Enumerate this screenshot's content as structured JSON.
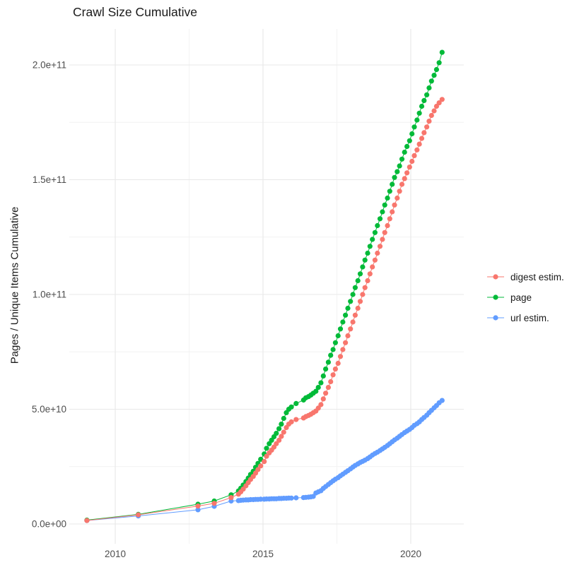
{
  "title": "Crawl Size Cumulative",
  "y_axis": {
    "label": "Pages / Unique Items Cumulative",
    "tick_labels": [
      "0.0e+00",
      "5.0e+10",
      "1.0e+11",
      "1.5e+11",
      "2.0e+11"
    ],
    "tick_values_x1e10": [
      0,
      5,
      10,
      15,
      20
    ],
    "minor_values_x1e10": [
      2.5,
      7.5,
      12.5,
      17.5
    ]
  },
  "x_axis": {
    "tick_labels": [
      "2010",
      "2015",
      "2020"
    ],
    "tick_years": [
      2010,
      2015,
      2020
    ],
    "minor_years": [
      2012.5,
      2017.5
    ]
  },
  "legend": {
    "items": [
      {
        "label": "digest estim.",
        "color": "#F8766D"
      },
      {
        "label": "page",
        "color": "#00BA38"
      },
      {
        "label": "url estim.",
        "color": "#619CFF"
      }
    ]
  },
  "chart_data": {
    "type": "scatter",
    "title": "Crawl Size Cumulative",
    "xlabel": "",
    "ylabel": "Pages / Unique Items Cumulative",
    "xlim": [
      2008.4,
      2021.7
    ],
    "ylim": [
      0,
      215000000000.0
    ],
    "grid": true,
    "legend_position": "right",
    "y_unit_multiplier": 10000000000.0,
    "x_years": [
      2009.04,
      2010.78,
      2012.8,
      2013.35,
      2013.92,
      2014.17,
      2014.25,
      2014.33,
      2014.42,
      2014.5,
      2014.58,
      2014.67,
      2014.75,
      2014.83,
      2014.92,
      2015.04,
      2015.12,
      2015.21,
      2015.29,
      2015.37,
      2015.45,
      2015.54,
      2015.62,
      2015.7,
      2015.79,
      2015.87,
      2015.96,
      2016.12,
      2016.37,
      2016.45,
      2016.54,
      2016.62,
      2016.7,
      2016.79,
      2016.87,
      2016.96,
      2017.04,
      2017.12,
      2017.21,
      2017.29,
      2017.37,
      2017.45,
      2017.54,
      2017.62,
      2017.7,
      2017.79,
      2017.87,
      2017.96,
      2018.04,
      2018.12,
      2018.21,
      2018.29,
      2018.37,
      2018.45,
      2018.54,
      2018.62,
      2018.7,
      2018.79,
      2018.87,
      2018.96,
      2019.04,
      2019.12,
      2019.21,
      2019.29,
      2019.37,
      2019.45,
      2019.54,
      2019.62,
      2019.7,
      2019.79,
      2019.87,
      2019.96,
      2020.04,
      2020.12,
      2020.21,
      2020.29,
      2020.37,
      2020.45,
      2020.54,
      2020.62,
      2020.7,
      2020.79,
      2020.87,
      2020.96,
      2021.06
    ],
    "series": [
      {
        "name": "digest estim.",
        "color": "#F8766D",
        "values_x1e10": [
          0.15,
          0.4,
          0.78,
          0.9,
          1.15,
          1.3,
          1.4,
          1.52,
          1.66,
          1.8,
          1.94,
          2.07,
          2.22,
          2.37,
          2.53,
          2.72,
          2.95,
          3.1,
          3.22,
          3.35,
          3.5,
          3.65,
          3.82,
          4.0,
          4.2,
          4.35,
          4.45,
          4.55,
          4.62,
          4.68,
          4.73,
          4.78,
          4.85,
          4.92,
          5.05,
          5.2,
          5.45,
          5.7,
          5.95,
          6.2,
          6.5,
          6.75,
          7.0,
          7.3,
          7.6,
          7.9,
          8.2,
          8.5,
          8.8,
          9.1,
          9.4,
          9.7,
          10.0,
          10.3,
          10.6,
          10.9,
          11.2,
          11.5,
          11.8,
          12.1,
          12.4,
          12.7,
          13.0,
          13.3,
          13.6,
          13.9,
          14.2,
          14.5,
          14.8,
          15.05,
          15.3,
          15.55,
          15.8,
          16.05,
          16.3,
          16.55,
          16.8,
          17.05,
          17.3,
          17.55,
          17.8,
          18.0,
          18.2,
          18.35,
          18.5
        ]
      },
      {
        "name": "page",
        "color": "#00BA38",
        "values_x1e10": [
          0.17,
          0.42,
          0.86,
          1.0,
          1.27,
          1.44,
          1.56,
          1.7,
          1.85,
          2.0,
          2.16,
          2.3,
          2.47,
          2.64,
          2.82,
          3.05,
          3.3,
          3.5,
          3.65,
          3.8,
          3.95,
          4.15,
          4.35,
          4.6,
          4.85,
          5.0,
          5.1,
          5.25,
          5.4,
          5.5,
          5.55,
          5.62,
          5.7,
          5.78,
          5.95,
          6.15,
          6.45,
          6.75,
          7.05,
          7.35,
          7.6,
          7.9,
          8.2,
          8.5,
          8.8,
          9.1,
          9.4,
          9.7,
          10.0,
          10.3,
          10.6,
          10.9,
          11.2,
          11.5,
          11.8,
          12.1,
          12.4,
          12.7,
          13.0,
          13.3,
          13.6,
          13.9,
          14.2,
          14.5,
          14.8,
          15.1,
          15.35,
          15.6,
          15.9,
          16.2,
          16.45,
          16.7,
          17.0,
          17.3,
          17.6,
          17.9,
          18.2,
          18.45,
          18.7,
          19.0,
          19.3,
          19.55,
          19.8,
          20.1,
          20.55
        ]
      },
      {
        "name": "url estim.",
        "color": "#619CFF",
        "values_x1e10": [
          0.15,
          0.35,
          0.62,
          0.77,
          1.0,
          1.02,
          1.03,
          1.04,
          1.05,
          1.05,
          1.06,
          1.06,
          1.07,
          1.07,
          1.08,
          1.08,
          1.09,
          1.09,
          1.1,
          1.1,
          1.1,
          1.11,
          1.11,
          1.12,
          1.12,
          1.13,
          1.13,
          1.14,
          1.15,
          1.16,
          1.17,
          1.18,
          1.2,
          1.35,
          1.4,
          1.45,
          1.55,
          1.63,
          1.72,
          1.8,
          1.88,
          1.95,
          2.02,
          2.1,
          2.17,
          2.25,
          2.32,
          2.4,
          2.48,
          2.55,
          2.62,
          2.68,
          2.73,
          2.78,
          2.85,
          2.92,
          3.0,
          3.07,
          3.13,
          3.2,
          3.27,
          3.34,
          3.42,
          3.5,
          3.58,
          3.66,
          3.74,
          3.82,
          3.9,
          3.98,
          4.05,
          4.12,
          4.2,
          4.3,
          4.37,
          4.45,
          4.55,
          4.64,
          4.74,
          4.85,
          4.95,
          5.06,
          5.16,
          5.28,
          5.38
        ]
      }
    ]
  },
  "style": {
    "grid_major_color": "#E8E8E8",
    "grid_minor_color": "#F2F2F2",
    "axis_text_color": "#4d4d4d",
    "background": "#ffffff"
  }
}
